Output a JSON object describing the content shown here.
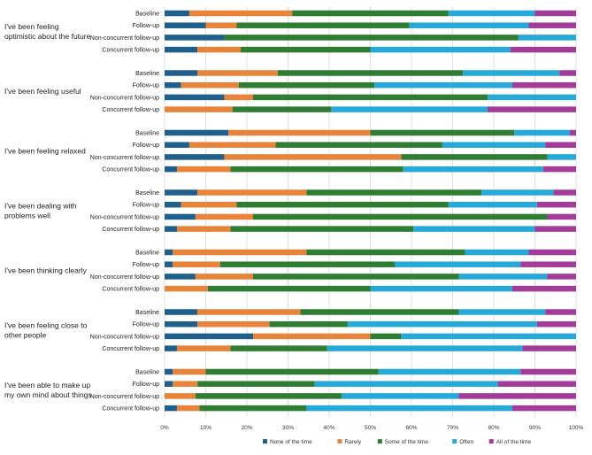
{
  "chart_data": {
    "type": "bar",
    "orientation": "horizontal",
    "stacked": true,
    "title": "",
    "xlabel": "",
    "ylabel": "",
    "xlim": [
      0,
      100
    ],
    "x_ticks": [
      "0%",
      "10%",
      "20%",
      "30%",
      "40%",
      "50%",
      "60%",
      "70%",
      "80%",
      "90%",
      "100%"
    ],
    "grid": true,
    "legend_position": "bottom",
    "row_labels": [
      "Baseline",
      "Follow-up",
      "Non-concurrent follow-up",
      "Concurrent follow-up"
    ],
    "series": [
      {
        "name": "None of the time",
        "color": "#1f5f8b"
      },
      {
        "name": "Rarely",
        "color": "#e8833a"
      },
      {
        "name": "Some of the time",
        "color": "#2e7d32"
      },
      {
        "name": "Often",
        "color": "#25a9d9"
      },
      {
        "name": "All of the time",
        "color": "#a33c98"
      }
    ],
    "groups": [
      {
        "name": "I've been feeling optimistic about the future",
        "rows": [
          [
            6,
            25,
            38,
            21,
            10
          ],
          [
            10,
            7.5,
            42,
            29,
            11.5
          ],
          [
            14.5,
            0,
            71.5,
            14,
            0
          ],
          [
            8,
            10.5,
            31.5,
            34,
            16
          ]
        ]
      },
      {
        "name": "I've been feeling useful",
        "rows": [
          [
            8,
            19.5,
            45,
            23.5,
            4
          ],
          [
            4,
            14,
            33,
            33.5,
            15.5
          ],
          [
            14.5,
            7,
            57,
            21.5,
            0
          ],
          [
            0,
            16.5,
            24,
            38,
            21.5
          ]
        ]
      },
      {
        "name": "I've been feeling relaxed",
        "rows": [
          [
            15.5,
            34.5,
            35,
            13.5,
            1.5
          ],
          [
            6,
            21,
            40.5,
            25,
            7.5
          ],
          [
            14.5,
            43,
            35.5,
            7,
            0
          ],
          [
            3,
            13,
            42,
            34,
            8
          ]
        ]
      },
      {
        "name": "I've been dealing with problems well",
        "rows": [
          [
            8,
            26.5,
            42.5,
            17.5,
            5.5
          ],
          [
            4,
            13.5,
            51.5,
            21.5,
            9.5
          ],
          [
            7.5,
            14,
            71.5,
            0,
            7
          ],
          [
            3,
            13,
            44.5,
            29.5,
            10
          ]
        ]
      },
      {
        "name": "I've been thinking clearly",
        "rows": [
          [
            2,
            32.5,
            38.5,
            15.5,
            11.5
          ],
          [
            2,
            11.5,
            42.5,
            30.5,
            13.5
          ],
          [
            7.5,
            14,
            50,
            21.5,
            7
          ],
          [
            0,
            10.5,
            39.5,
            34.5,
            15.5
          ]
        ]
      },
      {
        "name": "I've been feeling close to other people",
        "rows": [
          [
            8,
            25,
            38.5,
            21,
            7.5
          ],
          [
            8,
            17.5,
            19,
            46,
            9.5
          ],
          [
            21.5,
            28.5,
            7.5,
            42.5,
            0
          ],
          [
            3,
            13,
            23.5,
            47.5,
            13
          ]
        ]
      },
      {
        "name": "I've been able to make up my own mind about things",
        "rows": [
          [
            2,
            8,
            42,
            34.5,
            13.5
          ],
          [
            2,
            6,
            28.5,
            44.5,
            19
          ],
          [
            0,
            7.5,
            35.5,
            28.5,
            28.5
          ],
          [
            3,
            5.5,
            26,
            50,
            15.5
          ]
        ]
      }
    ]
  }
}
